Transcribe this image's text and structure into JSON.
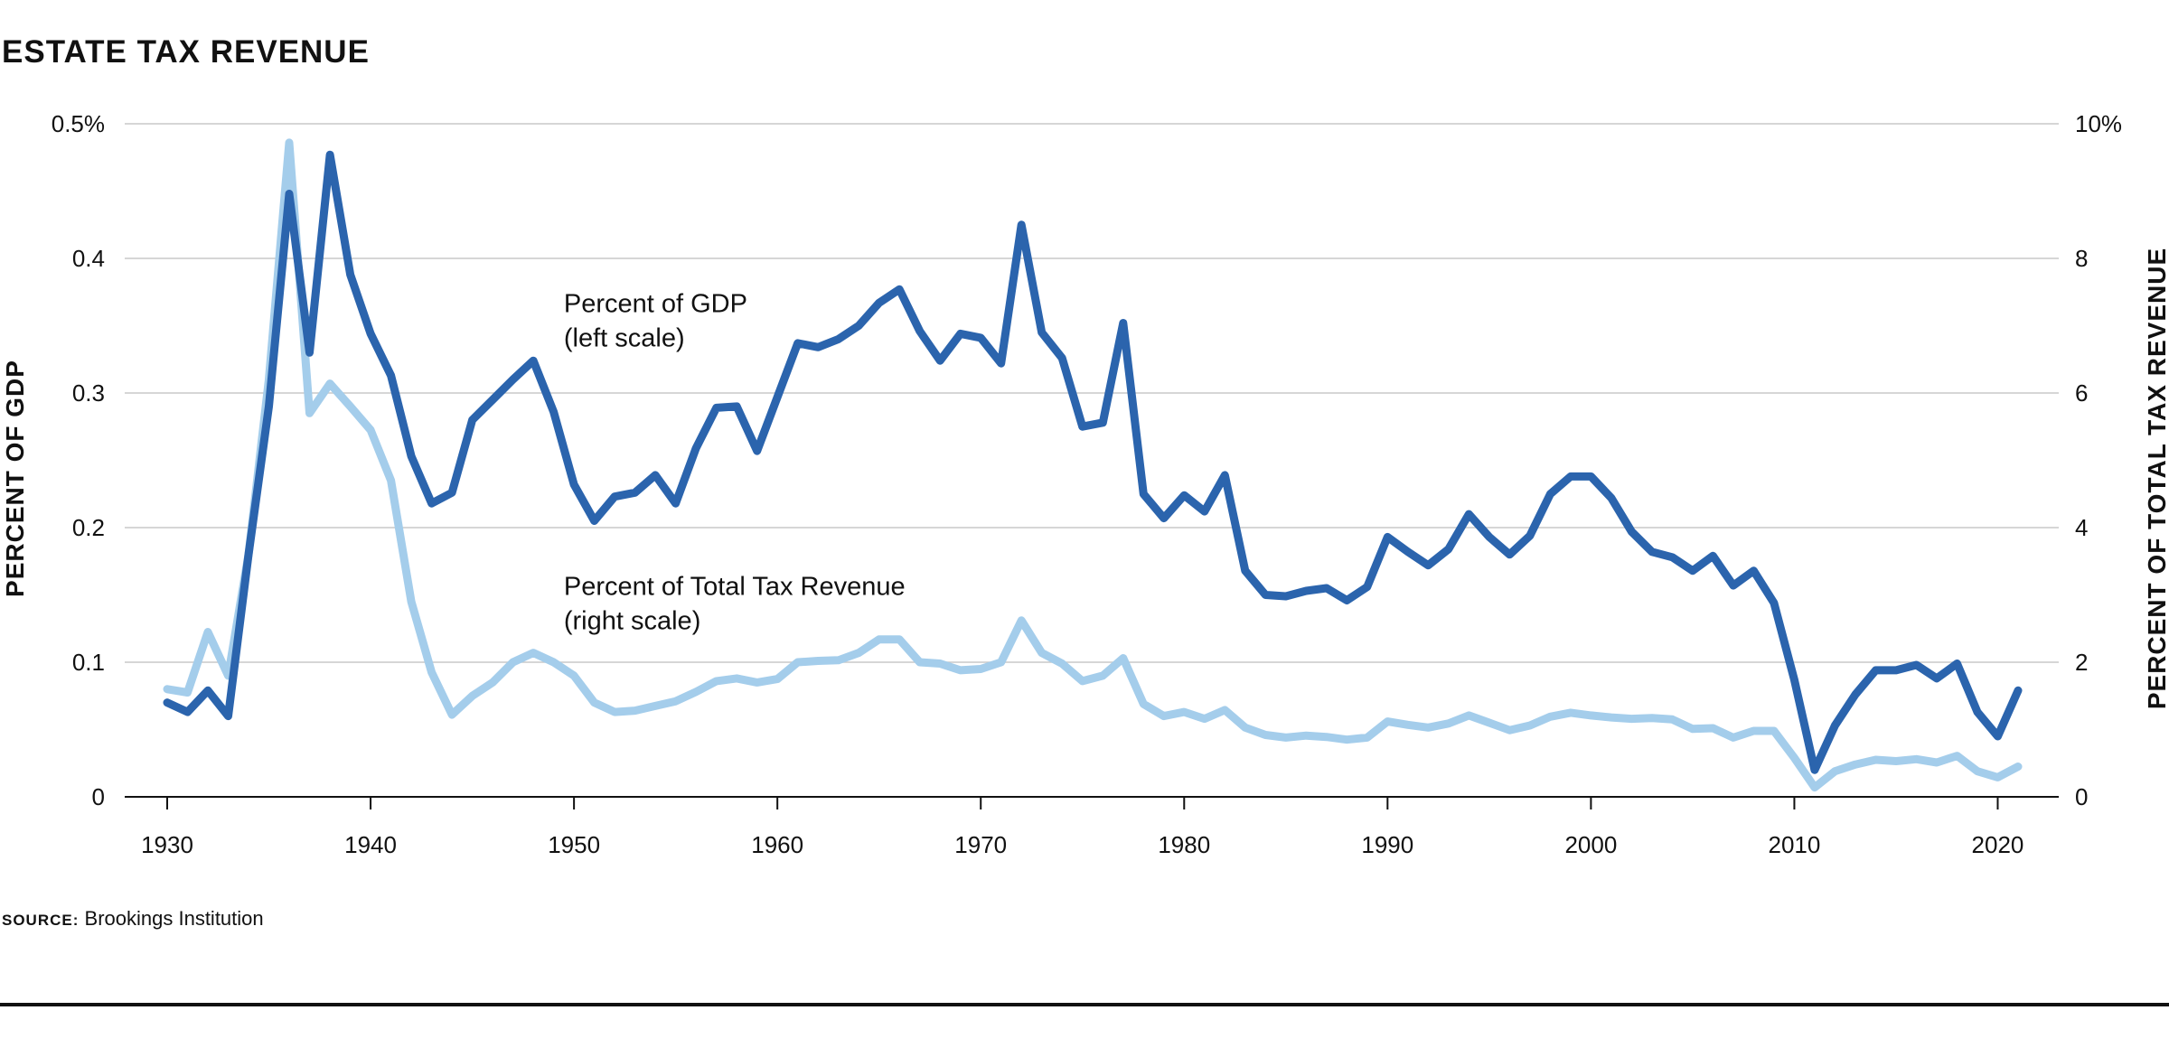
{
  "title": "ESTATE TAX REVENUE",
  "source_label": "SOURCE:",
  "source_text": "Brookings Institution",
  "colors": {
    "gdp": "#2b64ad",
    "total": "#a4cdeb",
    "grid": "#c8c8c8",
    "text": "#111111"
  },
  "chart_data": {
    "type": "line",
    "title": "ESTATE TAX REVENUE",
    "ylabel": "PERCENT OF GDP",
    "y2label": "PERCENT OF TOTAL TAX REVENUE",
    "xlim": [
      1928,
      2023
    ],
    "ylim": [
      0,
      0.5
    ],
    "y2lim": [
      0,
      10
    ],
    "x_ticks": [
      "1930",
      "1940",
      "1950",
      "1960",
      "1970",
      "1980",
      "1990",
      "2000",
      "2010",
      "2020"
    ],
    "y_ticks": [
      "0",
      "0.1",
      "0.2",
      "0.3",
      "0.4",
      "0.5%"
    ],
    "y2_ticks": [
      "0",
      "2",
      "4",
      "6",
      "8",
      "10%"
    ],
    "grid": true,
    "annotations": [
      {
        "lines": [
          "Percent of GDP",
          "(left scale)"
        ],
        "x": 1949.5,
        "y": 0.36
      },
      {
        "lines": [
          "Percent of Total Tax Revenue",
          "(right scale)"
        ],
        "x": 1949.5,
        "y": 0.15
      }
    ],
    "series": [
      {
        "name": "Percent of GDP",
        "axis": "left",
        "x": [
          1930,
          1931,
          1932,
          1933,
          1934,
          1935,
          1936,
          1937,
          1938,
          1939,
          1940,
          1941,
          1942,
          1943,
          1944,
          1945,
          1946,
          1947,
          1948,
          1949,
          1950,
          1951,
          1952,
          1953,
          1954,
          1955,
          1956,
          1957,
          1958,
          1959,
          1960,
          1961,
          1962,
          1963,
          1964,
          1965,
          1966,
          1967,
          1968,
          1969,
          1970,
          1971,
          1972,
          1973,
          1974,
          1975,
          1976,
          1977,
          1978,
          1979,
          1980,
          1981,
          1982,
          1983,
          1984,
          1985,
          1986,
          1987,
          1988,
          1989,
          1990,
          1991,
          1992,
          1993,
          1994,
          1995,
          1996,
          1997,
          1998,
          1999,
          2000,
          2001,
          2002,
          2003,
          2004,
          2005,
          2006,
          2007,
          2008,
          2009,
          2010,
          2011,
          2012,
          2013,
          2014,
          2015,
          2016,
          2017,
          2018,
          2019,
          2020,
          2021
        ],
        "y": [
          0.07,
          0.063,
          0.079,
          0.06,
          0.18,
          0.29,
          0.448,
          0.33,
          0.477,
          0.388,
          0.344,
          0.313,
          0.253,
          0.218,
          0.226,
          0.28,
          0.295,
          0.31,
          0.324,
          0.286,
          0.232,
          0.205,
          0.223,
          0.226,
          0.239,
          0.218,
          0.259,
          0.289,
          0.29,
          0.257,
          0.297,
          0.337,
          0.334,
          0.34,
          0.35,
          0.367,
          0.377,
          0.346,
          0.324,
          0.344,
          0.341,
          0.322,
          0.425,
          0.345,
          0.326,
          0.275,
          0.278,
          0.352,
          0.225,
          0.207,
          0.224,
          0.212,
          0.239,
          0.168,
          0.15,
          0.149,
          0.153,
          0.155,
          0.146,
          0.156,
          0.193,
          0.182,
          0.172,
          0.184,
          0.21,
          0.193,
          0.18,
          0.194,
          0.225,
          0.238,
          0.238,
          0.222,
          0.197,
          0.182,
          0.178,
          0.168,
          0.179,
          0.157,
          0.168,
          0.144,
          0.087,
          0.02,
          0.053,
          0.076,
          0.094,
          0.094,
          0.098,
          0.088,
          0.099,
          0.063,
          0.045,
          0.079
        ]
      },
      {
        "name": "Percent of Total Tax Revenue",
        "axis": "right",
        "x": [
          1930,
          1931,
          1932,
          1933,
          1934,
          1935,
          1936,
          1937,
          1938,
          1939,
          1940,
          1941,
          1942,
          1943,
          1944,
          1945,
          1946,
          1947,
          1948,
          1949,
          1950,
          1951,
          1952,
          1953,
          1954,
          1955,
          1956,
          1957,
          1958,
          1959,
          1960,
          1961,
          1962,
          1963,
          1964,
          1965,
          1966,
          1967,
          1968,
          1969,
          1970,
          1971,
          1972,
          1973,
          1974,
          1975,
          1976,
          1977,
          1978,
          1979,
          1980,
          1981,
          1982,
          1983,
          1984,
          1985,
          1986,
          1987,
          1988,
          1989,
          1990,
          1991,
          1992,
          1993,
          1994,
          1995,
          1996,
          1997,
          1998,
          1999,
          2000,
          2001,
          2002,
          2003,
          2004,
          2005,
          2006,
          2007,
          2008,
          2009,
          2010,
          2011,
          2012,
          2013,
          2014,
          2015,
          2016,
          2017,
          2018,
          2019,
          2020,
          2021
        ],
        "y": [
          1.6,
          1.55,
          2.45,
          1.8,
          3.6,
          6.2,
          9.72,
          5.7,
          6.14,
          5.8,
          5.45,
          4.7,
          2.9,
          1.85,
          1.22,
          1.5,
          1.7,
          2.0,
          2.14,
          2.0,
          1.8,
          1.4,
          1.26,
          1.28,
          1.35,
          1.42,
          1.56,
          1.72,
          1.76,
          1.7,
          1.75,
          2.0,
          2.02,
          2.03,
          2.14,
          2.34,
          2.34,
          2.0,
          1.98,
          1.88,
          1.9,
          2.0,
          2.62,
          2.14,
          1.98,
          1.72,
          1.8,
          2.06,
          1.38,
          1.2,
          1.26,
          1.16,
          1.29,
          1.03,
          0.92,
          0.88,
          0.91,
          0.89,
          0.85,
          0.88,
          1.12,
          1.07,
          1.03,
          1.09,
          1.21,
          1.1,
          0.99,
          1.06,
          1.19,
          1.25,
          1.21,
          1.18,
          1.16,
          1.17,
          1.15,
          1.01,
          1.02,
          0.88,
          0.98,
          0.98,
          0.58,
          0.14,
          0.38,
          0.48,
          0.55,
          0.53,
          0.56,
          0.51,
          0.61,
          0.38,
          0.29,
          0.45
        ]
      }
    ]
  }
}
